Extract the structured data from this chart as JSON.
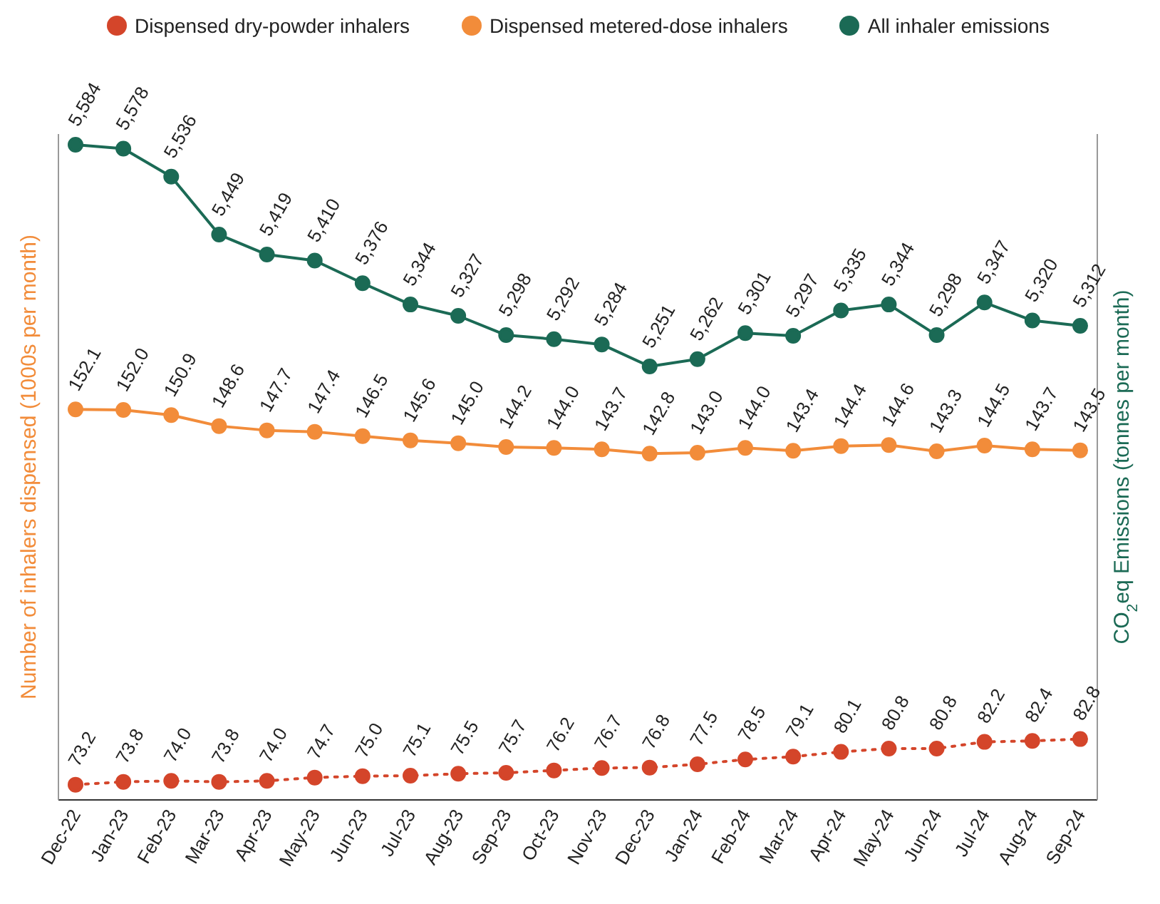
{
  "chart_data": {
    "type": "line",
    "categories": [
      "Dec-22",
      "Jan-23",
      "Feb-23",
      "Mar-23",
      "Apr-23",
      "May-23",
      "Jun-23",
      "Jul-23",
      "Aug-23",
      "Sep-23",
      "Oct-23",
      "Nov-23",
      "Dec-23",
      "Jan-24",
      "Feb-24",
      "Mar-24",
      "Apr-24",
      "May-24",
      "Jun-24",
      "Jul-24",
      "Aug-24",
      "Sep-24"
    ],
    "series": [
      {
        "name": "Dispensed dry-powder inhalers",
        "color": "#d4452a",
        "line_style": "dotted",
        "axis": "y",
        "values": [
          73.2,
          73.8,
          74.0,
          73.8,
          74.0,
          74.7,
          75.0,
          75.1,
          75.5,
          75.7,
          76.2,
          76.7,
          76.8,
          77.5,
          78.5,
          79.1,
          80.1,
          80.8,
          80.8,
          82.2,
          82.4,
          82.8
        ],
        "value_labels": [
          "73.2",
          "73.8",
          "74.0",
          "73.8",
          "74.0",
          "74.7",
          "75.0",
          "75.1",
          "75.5",
          "75.7",
          "76.2",
          "76.7",
          "76.8",
          "77.5",
          "78.5",
          "79.1",
          "80.1",
          "80.8",
          "80.8",
          "82.2",
          "82.4",
          "82.8"
        ]
      },
      {
        "name": "Dispensed metered-dose inhalers",
        "color": "#f28c3a",
        "line_style": "solid",
        "axis": "y",
        "values": [
          152.1,
          152.0,
          150.9,
          148.6,
          147.7,
          147.4,
          146.5,
          145.6,
          145.0,
          144.2,
          144.0,
          143.7,
          142.8,
          143.0,
          144.0,
          143.4,
          144.4,
          144.6,
          143.3,
          144.5,
          143.7,
          143.5
        ],
        "value_labels": [
          "152.1",
          "152.0",
          "150.9",
          "148.6",
          "147.7",
          "147.4",
          "146.5",
          "145.6",
          "145.0",
          "144.2",
          "144.0",
          "143.7",
          "142.8",
          "143.0",
          "144.0",
          "143.4",
          "144.4",
          "144.6",
          "143.3",
          "144.5",
          "143.7",
          "143.5"
        ]
      },
      {
        "name": "All inhaler emissions",
        "color": "#1b6a55",
        "line_style": "solid",
        "axis": "y2",
        "values": [
          5584,
          5578,
          5536,
          5449,
          5419,
          5410,
          5376,
          5344,
          5327,
          5298,
          5292,
          5284,
          5251,
          5262,
          5301,
          5297,
          5335,
          5344,
          5298,
          5347,
          5320,
          5312
        ],
        "value_labels": [
          "5,584",
          "5,578",
          "5,536",
          "5,449",
          "5,419",
          "5,410",
          "5,376",
          "5,344",
          "5,327",
          "5,298",
          "5,292",
          "5,284",
          "5,251",
          "5,262",
          "5,301",
          "5,297",
          "5,335",
          "5,344",
          "5,298",
          "5,347",
          "5,320",
          "5,312"
        ]
      }
    ],
    "ylabel": "Number of inhalers dispensed (1000s per month)",
    "y2label": "CO$_{2}$eq Emissions (tonnes per month)",
    "ylim": [
      70,
      210
    ],
    "y2lim": [
      4600,
      5600
    ],
    "tick_labels": "x",
    "legend": "top",
    "marker": "circle"
  }
}
